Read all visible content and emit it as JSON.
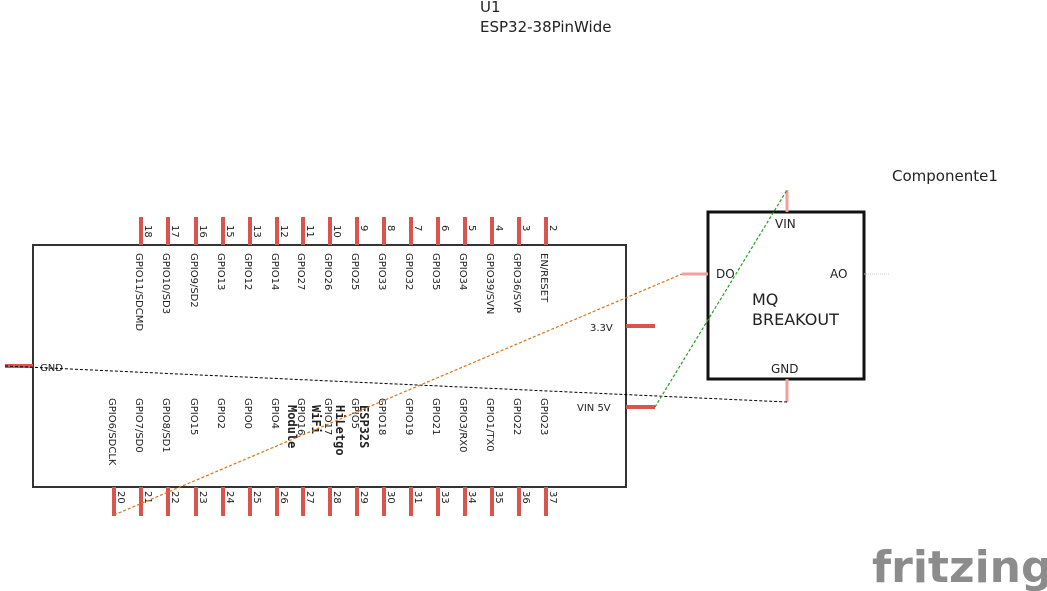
{
  "part": {
    "ref": "U1",
    "name": "ESP32-38PinWide"
  },
  "module_text": [
    "ESP32S",
    "HiLetgo",
    "WiFi",
    "Module"
  ],
  "esp_top_pins": [
    {
      "num": "18",
      "label": "GPIO11/SDCMD"
    },
    {
      "num": "17",
      "label": "GPIO10/SD3"
    },
    {
      "num": "16",
      "label": "GPIO9/SD2"
    },
    {
      "num": "15",
      "label": "GPIO13"
    },
    {
      "num": "13",
      "label": "GPIO12"
    },
    {
      "num": "12",
      "label": "GPIO14"
    },
    {
      "num": "11",
      "label": "GPIO27"
    },
    {
      "num": "10",
      "label": "GPIO26"
    },
    {
      "num": "9",
      "label": "GPIO25"
    },
    {
      "num": "8",
      "label": "GPIO33"
    },
    {
      "num": "7",
      "label": "GPIO32"
    },
    {
      "num": "6",
      "label": "GPIO35"
    },
    {
      "num": "5",
      "label": "GPIO34"
    },
    {
      "num": "4",
      "label": "GPIO39/SVN"
    },
    {
      "num": "3",
      "label": "GPIO36/SVP"
    },
    {
      "num": "2",
      "label": "EN/RESET"
    }
  ],
  "esp_bottom_pins": [
    {
      "num": "20",
      "label": "GPIO6/SDCLK"
    },
    {
      "num": "21",
      "label": "GPIO7/SD0"
    },
    {
      "num": "22",
      "label": "GPIO8/SD1"
    },
    {
      "num": "23",
      "label": "GPIO15"
    },
    {
      "num": "24",
      "label": "GPIO2"
    },
    {
      "num": "25",
      "label": "GPIO0"
    },
    {
      "num": "26",
      "label": "GPIO4"
    },
    {
      "num": "27",
      "label": "GPIO16"
    },
    {
      "num": "28",
      "label": "GPIO17"
    },
    {
      "num": "29",
      "label": "GPIO5"
    },
    {
      "num": "30",
      "label": "GPIO18"
    },
    {
      "num": "31",
      "label": "GPIO19"
    },
    {
      "num": "33",
      "label": "GPIO21"
    },
    {
      "num": "34",
      "label": "GPIO3/RX0"
    },
    {
      "num": "35",
      "label": "GPIO1/TX0"
    },
    {
      "num": "36",
      "label": "GPIO22"
    },
    {
      "num": "37",
      "label": "GPIO23"
    }
  ],
  "esp_side_pins": {
    "gnd": "GND",
    "v33": "3.3V",
    "vin": "VIN 5V"
  },
  "sensor": {
    "title": "Componente1",
    "name_line1": "MQ",
    "name_line2": "BREAKOUT",
    "pins": {
      "vin": "VIN",
      "do": "DO",
      "ao": "AO",
      "gnd": "GND"
    }
  },
  "wires": [
    {
      "name": "gnd-wire",
      "color": "#000000"
    },
    {
      "name": "do-wire",
      "color": "#d9731a"
    },
    {
      "name": "vin-wire",
      "color": "#22a022"
    }
  ],
  "colors": {
    "pin": "#d9534f",
    "pin_light": "#f0a0a0",
    "outline": "#333333"
  },
  "logo": "fritzing"
}
